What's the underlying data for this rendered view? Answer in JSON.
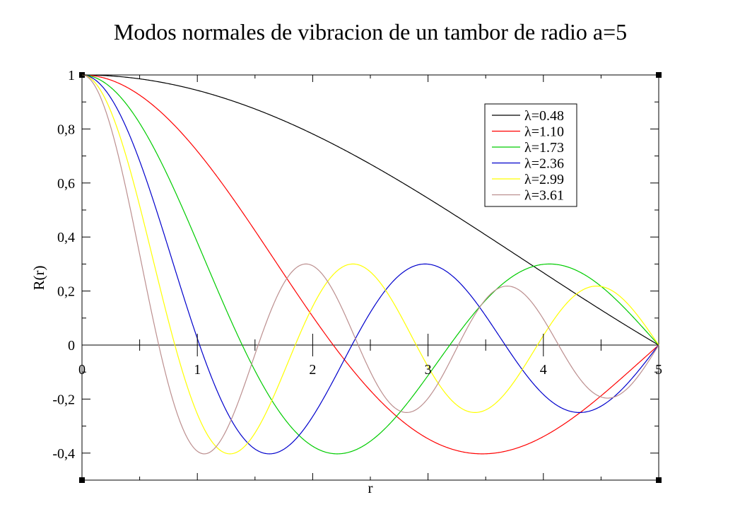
{
  "chart_data": {
    "type": "line",
    "title": "Modos normales de vibracion de un tambor de radio a=5",
    "xlabel": "r",
    "ylabel": "R(r)",
    "xlim": [
      0,
      5
    ],
    "ylim": [
      -0.5,
      1
    ],
    "x_ticks": [
      {
        "v": 0,
        "label": "0"
      },
      {
        "v": 1,
        "label": "1"
      },
      {
        "v": 2,
        "label": "2"
      },
      {
        "v": 3,
        "label": "3"
      },
      {
        "v": 4,
        "label": "4"
      },
      {
        "v": 5,
        "label": "5"
      }
    ],
    "y_ticks": [
      {
        "v": 1,
        "label": "1"
      },
      {
        "v": 0.8,
        "label": "0,8"
      },
      {
        "v": 0.6,
        "label": "0,6"
      },
      {
        "v": 0.4,
        "label": "0,4"
      },
      {
        "v": 0.2,
        "label": "0,2"
      },
      {
        "v": 0,
        "label": "0"
      },
      {
        "v": -0.2,
        "label": "-0,2"
      },
      {
        "v": -0.4,
        "label": "-0,4"
      }
    ],
    "legend_position": "top-right",
    "grid": false,
    "function": "J0(lambda * r)",
    "series": [
      {
        "name": "λ=0.48",
        "lambda": 0.481,
        "color": "#000000"
      },
      {
        "name": "λ=1.10",
        "lambda": 1.104,
        "color": "#ff0000"
      },
      {
        "name": "λ=1.73",
        "lambda": 1.731,
        "color": "#00cc00"
      },
      {
        "name": "λ=2.36",
        "lambda": 2.3585,
        "color": "#0000cc"
      },
      {
        "name": "λ=2.99",
        "lambda": 2.9861,
        "color": "#ffff00"
      },
      {
        "name": "λ=3.61",
        "lambda": 3.6137,
        "color": "#bc8f8f"
      }
    ]
  }
}
